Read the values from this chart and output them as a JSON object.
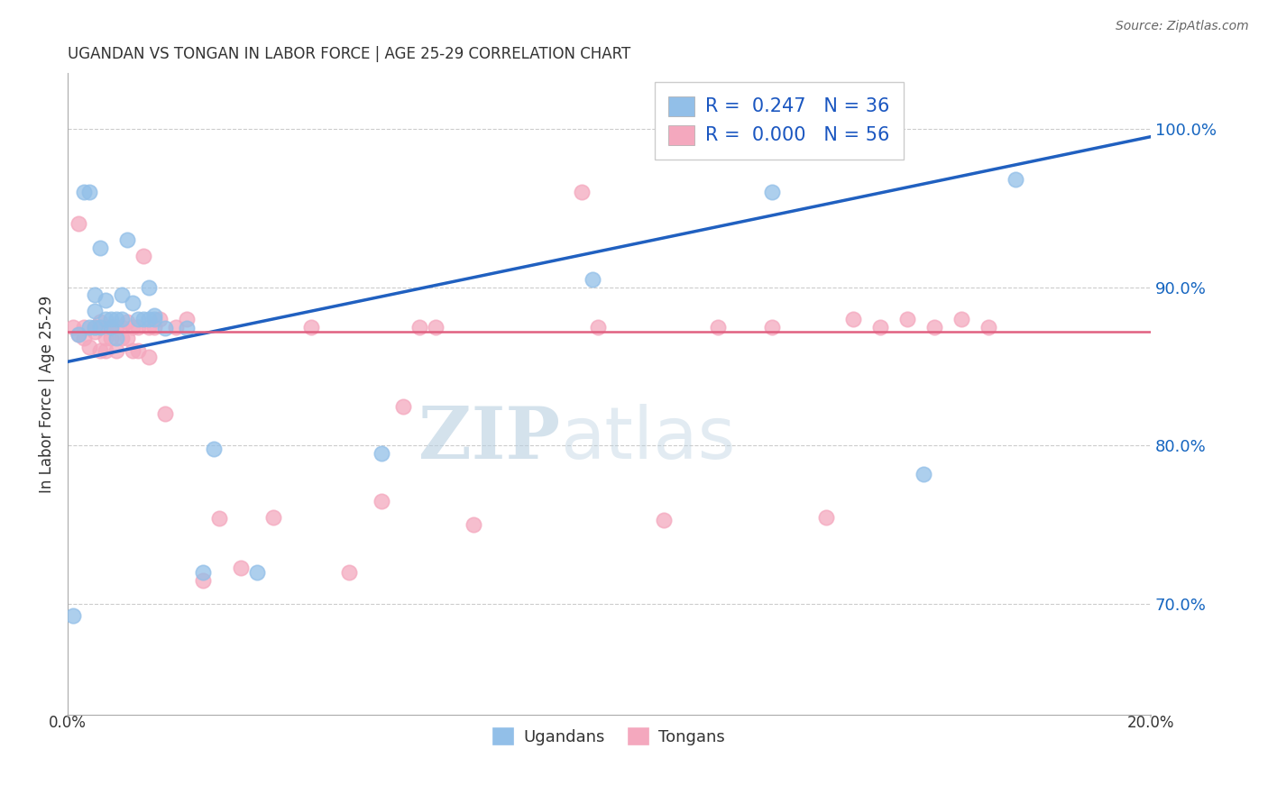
{
  "title": "UGANDAN VS TONGAN IN LABOR FORCE | AGE 25-29 CORRELATION CHART",
  "source_text": "Source: ZipAtlas.com",
  "ylabel": "In Labor Force | Age 25-29",
  "xlim": [
    0.0,
    0.2
  ],
  "ylim": [
    0.63,
    1.035
  ],
  "yticks": [
    0.7,
    0.8,
    0.9,
    1.0
  ],
  "ytick_labels": [
    "70.0%",
    "80.0%",
    "90.0%",
    "100.0%"
  ],
  "watermark_zip": "ZIP",
  "watermark_atlas": "atlas",
  "legend_R_blue": " 0.247",
  "legend_N_blue": "36",
  "legend_R_pink": " 0.000",
  "legend_N_pink": "56",
  "blue_color": "#92bfe8",
  "pink_color": "#f4a8be",
  "blue_line_color": "#2060c0",
  "pink_line_color": "#e06080",
  "blue_line_y0": 0.853,
  "blue_line_y1": 0.995,
  "pink_line_y": 0.872,
  "ugandan_x": [
    0.001,
    0.002,
    0.003,
    0.004,
    0.004,
    0.005,
    0.005,
    0.005,
    0.006,
    0.006,
    0.007,
    0.007,
    0.008,
    0.008,
    0.009,
    0.009,
    0.01,
    0.01,
    0.011,
    0.012,
    0.013,
    0.014,
    0.015,
    0.015,
    0.016,
    0.016,
    0.018,
    0.022,
    0.025,
    0.027,
    0.035,
    0.058,
    0.097,
    0.13,
    0.158,
    0.175
  ],
  "ugandan_y": [
    0.693,
    0.87,
    0.96,
    0.96,
    0.875,
    0.895,
    0.875,
    0.885,
    0.925,
    0.875,
    0.88,
    0.892,
    0.88,
    0.875,
    0.88,
    0.868,
    0.895,
    0.88,
    0.93,
    0.89,
    0.88,
    0.88,
    0.9,
    0.88,
    0.882,
    0.88,
    0.874,
    0.874,
    0.72,
    0.798,
    0.72,
    0.795,
    0.905,
    0.96,
    0.782,
    0.968
  ],
  "tongan_x": [
    0.001,
    0.002,
    0.002,
    0.003,
    0.003,
    0.004,
    0.005,
    0.005,
    0.006,
    0.006,
    0.007,
    0.007,
    0.007,
    0.008,
    0.008,
    0.009,
    0.009,
    0.01,
    0.01,
    0.011,
    0.011,
    0.012,
    0.012,
    0.013,
    0.013,
    0.014,
    0.015,
    0.015,
    0.016,
    0.017,
    0.018,
    0.02,
    0.022,
    0.025,
    0.028,
    0.032,
    0.038,
    0.045,
    0.052,
    0.058,
    0.062,
    0.065,
    0.068,
    0.075,
    0.095,
    0.098,
    0.11,
    0.12,
    0.13,
    0.14,
    0.145,
    0.15,
    0.155,
    0.16,
    0.165,
    0.17
  ],
  "tongan_y": [
    0.875,
    0.87,
    0.94,
    0.868,
    0.875,
    0.862,
    0.872,
    0.875,
    0.878,
    0.86,
    0.868,
    0.875,
    0.86,
    0.868,
    0.875,
    0.875,
    0.86,
    0.868,
    0.875,
    0.878,
    0.868,
    0.875,
    0.86,
    0.875,
    0.86,
    0.92,
    0.856,
    0.875,
    0.875,
    0.88,
    0.82,
    0.875,
    0.88,
    0.715,
    0.754,
    0.723,
    0.755,
    0.875,
    0.72,
    0.765,
    0.825,
    0.875,
    0.875,
    0.75,
    0.96,
    0.875,
    0.753,
    0.875,
    0.875,
    0.755,
    0.88,
    0.875,
    0.88,
    0.875,
    0.88,
    0.875
  ]
}
